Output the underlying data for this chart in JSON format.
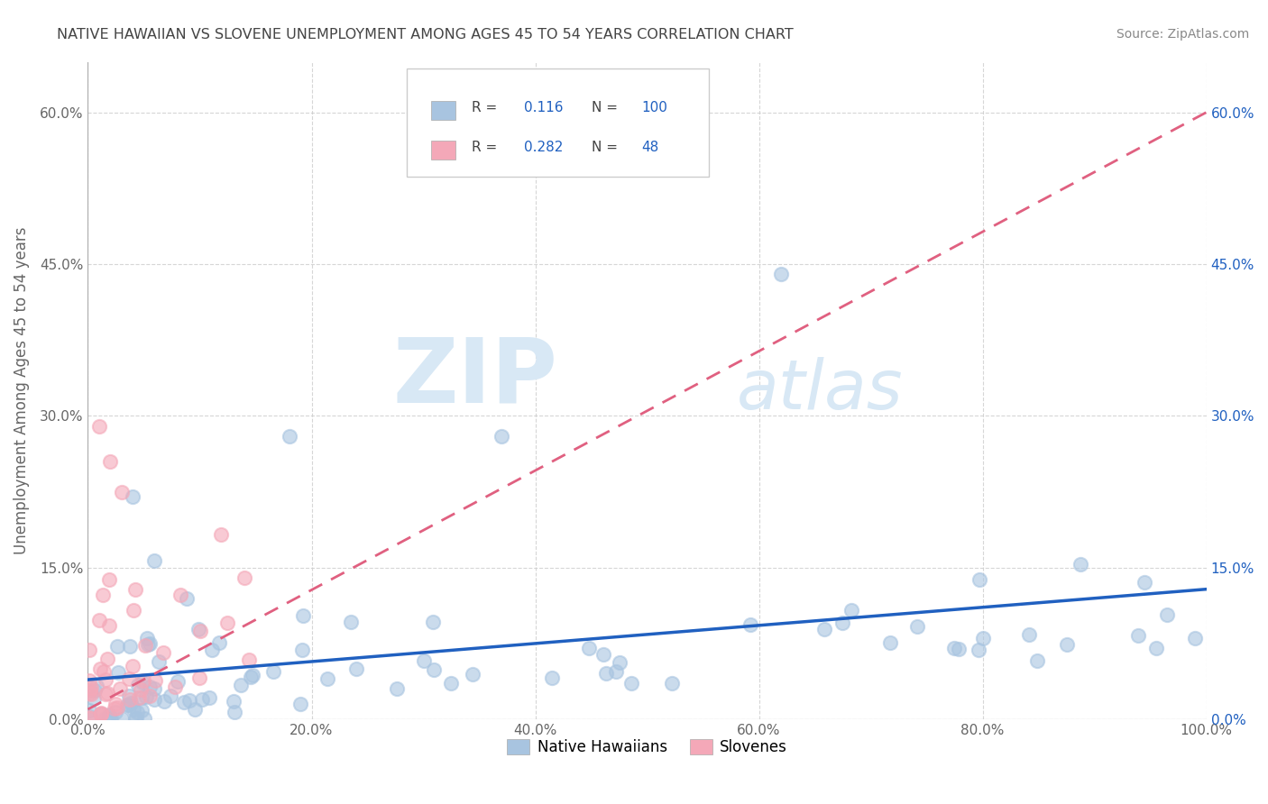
{
  "title": "NATIVE HAWAIIAN VS SLOVENE UNEMPLOYMENT AMONG AGES 45 TO 54 YEARS CORRELATION CHART",
  "source": "Source: ZipAtlas.com",
  "ylabel": "Unemployment Among Ages 45 to 54 years",
  "xlim": [
    0,
    1.0
  ],
  "ylim": [
    0,
    0.65
  ],
  "xticks": [
    0.0,
    0.2,
    0.4,
    0.6,
    0.8,
    1.0
  ],
  "xticklabels": [
    "0.0%",
    "20.0%",
    "40.0%",
    "60.0%",
    "80.0%",
    "100.0%"
  ],
  "yticks": [
    0.0,
    0.15,
    0.3,
    0.45,
    0.6
  ],
  "yticklabels": [
    "0.0%",
    "15.0%",
    "30.0%",
    "45.0%",
    "60.0%"
  ],
  "hawaiian_R": 0.116,
  "hawaiian_N": 100,
  "slovene_R": 0.282,
  "slovene_N": 48,
  "hawaiian_color": "#a8c4e0",
  "slovene_color": "#f4a8b8",
  "hawaiian_line_color": "#2060c0",
  "slovene_line_color": "#e06080",
  "grid_color": "#cccccc",
  "background_color": "#ffffff",
  "watermark_zip": "ZIP",
  "watermark_atlas": "atlas",
  "watermark_color": "#d8e8f5"
}
